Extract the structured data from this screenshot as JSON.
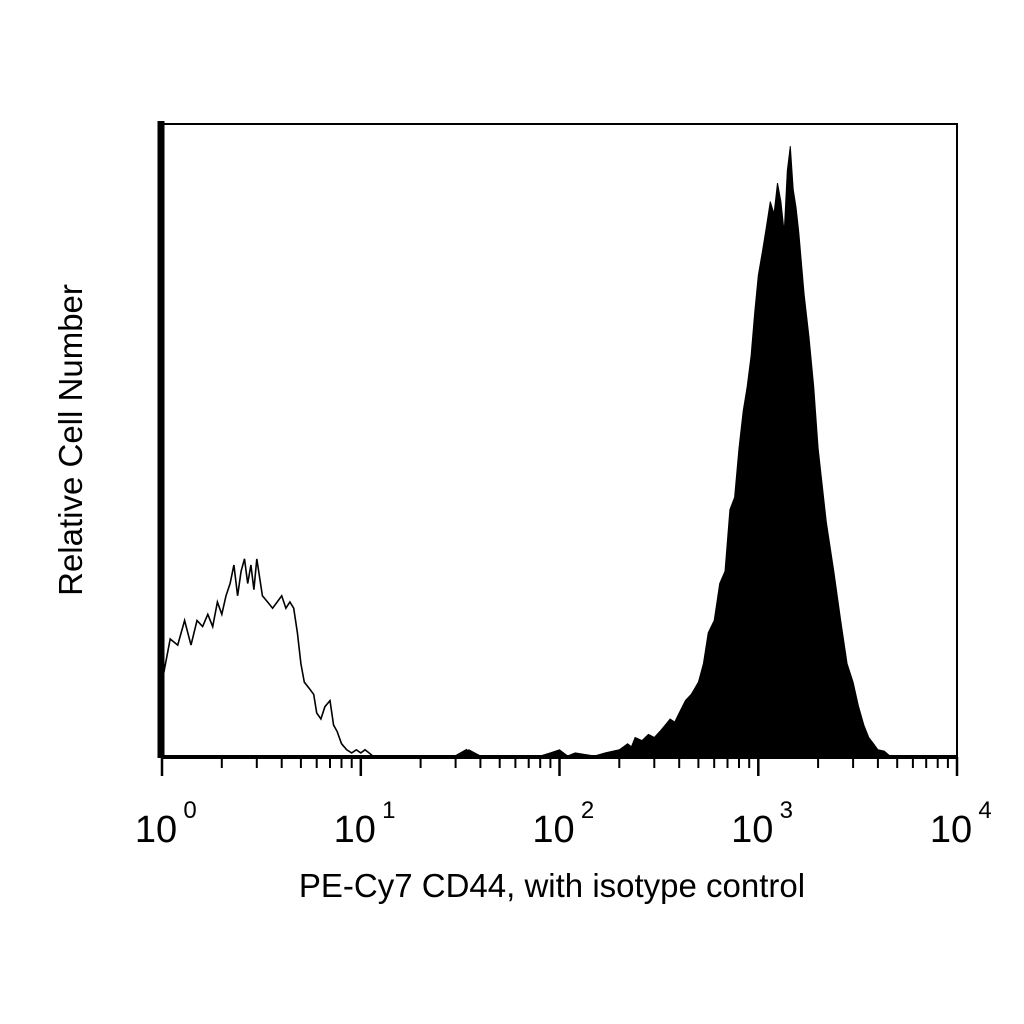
{
  "chart_data": {
    "type": "area",
    "title": "",
    "xlabel": "PE-Cy7 CD44, with isotype control",
    "ylabel": "Relative Cell Number",
    "x_scale": "log",
    "xlim": [
      1,
      10000
    ],
    "ylim": [
      0,
      1
    ],
    "grid": false,
    "legend": "none",
    "x_ticks": [
      {
        "base": "10",
        "exp": "0"
      },
      {
        "base": "10",
        "exp": "1"
      },
      {
        "base": "10",
        "exp": "2"
      },
      {
        "base": "10",
        "exp": "3"
      },
      {
        "base": "10",
        "exp": "4"
      }
    ],
    "series": [
      {
        "style": "outline",
        "color": "#000000",
        "x": [
          1.0,
          1.1,
          1.2,
          1.3,
          1.4,
          1.5,
          1.6,
          1.7,
          1.8,
          1.9,
          2.0,
          2.1,
          2.2,
          2.3,
          2.4,
          2.5,
          2.6,
          2.7,
          2.8,
          2.9,
          3.0,
          3.2,
          3.4,
          3.6,
          3.8,
          4.0,
          4.2,
          4.4,
          4.6,
          4.8,
          5.0,
          5.2,
          5.5,
          5.8,
          6.0,
          6.3,
          6.6,
          7.0,
          7.3,
          7.6,
          8.0,
          8.5,
          9.0,
          9.5,
          10.0,
          10.5,
          11.0,
          11.5,
          12.0,
          13.0,
          15.0,
          20.0,
          30.0,
          34.0,
          36.0,
          40.0,
          60.0,
          80.0
        ],
        "values": [
          0.12,
          0.19,
          0.18,
          0.22,
          0.18,
          0.22,
          0.21,
          0.23,
          0.21,
          0.25,
          0.23,
          0.26,
          0.28,
          0.31,
          0.26,
          0.3,
          0.32,
          0.28,
          0.31,
          0.27,
          0.32,
          0.26,
          0.25,
          0.24,
          0.25,
          0.26,
          0.24,
          0.25,
          0.24,
          0.2,
          0.15,
          0.12,
          0.11,
          0.1,
          0.07,
          0.06,
          0.08,
          0.09,
          0.05,
          0.04,
          0.02,
          0.01,
          0.005,
          0.01,
          0.005,
          0.01,
          0.005,
          0.0,
          0.0,
          0.0,
          0.0,
          0.0,
          0.0,
          0.01,
          0.0,
          0.0,
          0.0,
          0.0
        ]
      },
      {
        "style": "filled",
        "color": "#000000",
        "x": [
          30,
          35,
          40,
          60,
          80,
          90,
          100,
          110,
          120,
          150,
          170,
          200,
          210,
          220,
          230,
          240,
          260,
          280,
          300,
          320,
          340,
          360,
          380,
          400,
          430,
          460,
          500,
          530,
          560,
          600,
          640,
          680,
          720,
          760,
          800,
          840,
          880,
          920,
          960,
          1000,
          1050,
          1100,
          1150,
          1200,
          1250,
          1300,
          1350,
          1400,
          1450,
          1500,
          1550,
          1600,
          1700,
          1800,
          1900,
          2000,
          2200,
          2400,
          2600,
          2800,
          3000,
          3200,
          3400,
          3600,
          3800,
          4000,
          4300,
          4600,
          5000,
          6000
        ],
        "values": [
          0.0,
          0.01,
          0.0,
          0.0,
          0.0,
          0.005,
          0.01,
          0.0,
          0.005,
          0.0,
          0.005,
          0.01,
          0.015,
          0.02,
          0.015,
          0.03,
          0.025,
          0.035,
          0.03,
          0.04,
          0.05,
          0.06,
          0.055,
          0.07,
          0.09,
          0.1,
          0.12,
          0.15,
          0.2,
          0.22,
          0.28,
          0.3,
          0.4,
          0.42,
          0.5,
          0.56,
          0.6,
          0.65,
          0.72,
          0.78,
          0.82,
          0.86,
          0.9,
          0.88,
          0.93,
          0.9,
          0.85,
          0.95,
          0.99,
          0.92,
          0.89,
          0.85,
          0.75,
          0.68,
          0.6,
          0.5,
          0.38,
          0.3,
          0.22,
          0.15,
          0.12,
          0.08,
          0.05,
          0.03,
          0.02,
          0.01,
          0.008,
          0.0,
          0.0,
          0.0
        ]
      }
    ]
  }
}
